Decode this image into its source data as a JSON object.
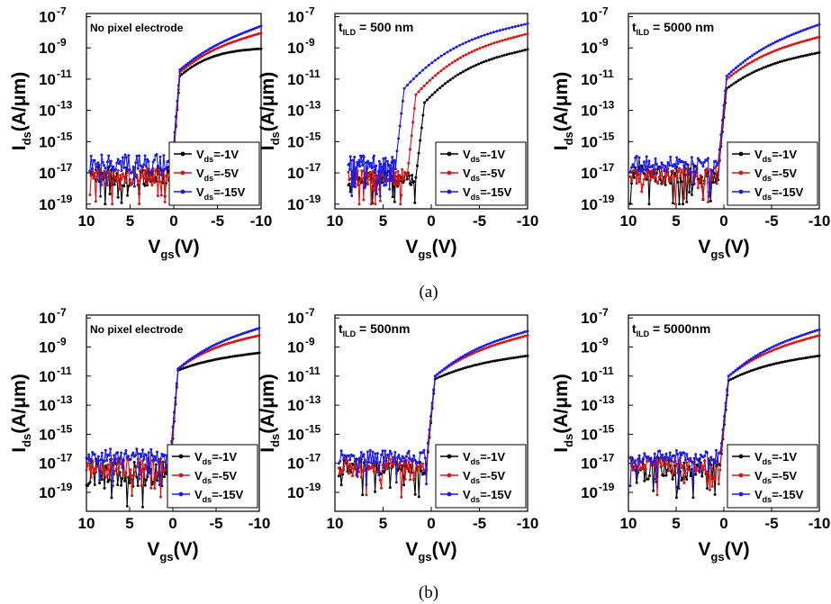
{
  "figure": {
    "caption_a": "(a)",
    "caption_b": "(b)"
  },
  "chart_data": [
    {
      "type": "line",
      "row": "a",
      "annotation": {
        "text": "No pixel electrode"
      },
      "xlabel": {
        "main": "V",
        "sub": "gs",
        "unit": "(V)"
      },
      "ylabel": {
        "main": "I",
        "sub": "ds",
        "unit": "(A/μm)"
      },
      "xlim": [
        10,
        -10
      ],
      "ylog": true,
      "ylim": [
        -19.3,
        -6.8
      ],
      "xticks": [
        10,
        5,
        0,
        -5,
        -10
      ],
      "yticks": [
        -19,
        -17,
        -15,
        -13,
        -11,
        -9,
        -7
      ],
      "ytick_base": "10",
      "legend_position": "lower-right",
      "series": [
        {
          "name": "V_ds=-1V",
          "label_main": "V",
          "label_sub": "ds",
          "label_rest": "=-1V",
          "color": "#000000",
          "noise": [
            -16.6,
            -17.9
          ],
          "on": [
            -9.05,
            -8.9,
            -10.8
          ],
          "vt": 0.2,
          "off_start": 9.6,
          "seed": 3
        },
        {
          "name": "V_ds=-5V",
          "label_main": "V",
          "label_sub": "ds",
          "label_rest": "=-5V",
          "color": "#dd1111",
          "noise": [
            -16.7,
            -17.8
          ],
          "on": [
            -8.05,
            -8.95,
            -10.55
          ],
          "vt": 0.2,
          "off_start": 9.6,
          "seed": 7
        },
        {
          "name": "V_ds=-15V",
          "label_main": "V",
          "label_sub": "ds",
          "label_rest": "=-15V",
          "color": "#1a1aee",
          "noise": [
            -15.8,
            -17.0
          ],
          "on": [
            -7.6,
            -8.9,
            -10.4
          ],
          "vt": 0.2,
          "off_start": 9.6,
          "seed": 11
        }
      ]
    },
    {
      "type": "line",
      "row": "a",
      "annotation": {
        "text": "= 500 nm",
        "t_main": "t",
        "t_sub": "ILD"
      },
      "xlabel": {
        "main": "V",
        "sub": "gs",
        "unit": "(V)"
      },
      "ylabel": {
        "main": "I",
        "sub": "ds",
        "unit": "(A/μm)"
      },
      "xlim": [
        10,
        -10
      ],
      "ylog": true,
      "ylim": [
        -19.3,
        -6.8
      ],
      "xticks": [
        10,
        5,
        0,
        -5,
        -10
      ],
      "yticks": [
        -19,
        -17,
        -15,
        -13,
        -11,
        -9,
        -7
      ],
      "ytick_base": "10",
      "legend_position": "lower-right",
      "series": [
        {
          "name": "V_ds=-1V",
          "label_main": "V",
          "label_sub": "ds",
          "label_rest": "=-1V",
          "color": "#000000",
          "noise": [
            -16.8,
            -17.9
          ],
          "on": [
            -9.1,
            -9.7,
            -12.5
          ],
          "vt": 1.6,
          "off_start": 8.6,
          "seed": 5
        },
        {
          "name": "V_ds=-5V",
          "label_main": "V",
          "label_sub": "ds",
          "label_rest": "=-5V",
          "color": "#dd1111",
          "noise": [
            -16.7,
            -17.8
          ],
          "on": [
            -8.1,
            -8.8,
            -12.0
          ],
          "vt": 2.5,
          "off_start": 8.6,
          "seed": 9
        },
        {
          "name": "V_ds=-15V",
          "label_main": "V",
          "label_sub": "ds",
          "label_rest": "=-15V",
          "color": "#1a1aee",
          "noise": [
            -15.9,
            -16.9
          ],
          "on": [
            -7.45,
            -8.1,
            -11.6
          ],
          "vt": 3.7,
          "off_start": 8.6,
          "seed": 13
        }
      ]
    },
    {
      "type": "line",
      "row": "a",
      "annotation": {
        "text": "= 5000 nm",
        "t_main": "t",
        "t_sub": "ILD"
      },
      "xlabel": {
        "main": "V",
        "sub": "gs",
        "unit": "(V)"
      },
      "ylabel": {
        "main": "I",
        "sub": "ds",
        "unit": "(A/μm)"
      },
      "xlim": [
        10,
        -10
      ],
      "ylog": true,
      "ylim": [
        -19.3,
        -6.8
      ],
      "xticks": [
        10,
        5,
        0,
        -5,
        -10
      ],
      "yticks": [
        -19,
        -17,
        -15,
        -13,
        -11,
        -9,
        -7
      ],
      "ytick_base": "10",
      "legend_position": "lower-right",
      "series": [
        {
          "name": "V_ds=-1V",
          "label_main": "V",
          "label_sub": "ds",
          "label_rest": "=-1V",
          "color": "#000000",
          "noise": [
            -16.5,
            -17.8
          ],
          "on": [
            -9.3,
            -9.9,
            -11.6
          ],
          "vt": 0.6,
          "off_start": 9.8,
          "seed": 17
        },
        {
          "name": "V_ds=-5V",
          "label_main": "V",
          "label_sub": "ds",
          "label_rest": "=-5V",
          "color": "#dd1111",
          "noise": [
            -16.6,
            -17.7
          ],
          "on": [
            -8.3,
            -9.2,
            -11.0
          ],
          "vt": 0.6,
          "off_start": 9.8,
          "seed": 19
        },
        {
          "name": "V_ds=-15V",
          "label_main": "V",
          "label_sub": "ds",
          "label_rest": "=-15V",
          "color": "#1a1aee",
          "noise": [
            -15.9,
            -17.0
          ],
          "on": [
            -7.5,
            -8.8,
            -10.8
          ],
          "vt": 0.6,
          "off_start": 9.8,
          "seed": 23
        }
      ]
    },
    {
      "type": "line",
      "row": "b",
      "annotation": {
        "text": "No pixel electrode"
      },
      "xlabel": {
        "main": "V",
        "sub": "gs",
        "unit": "(V)"
      },
      "ylabel": {
        "main": "I",
        "sub": "ds",
        "unit": "(A/μm)"
      },
      "xlim": [
        10,
        -10
      ],
      "ylog": true,
      "ylim": [
        -20.3,
        -6.8
      ],
      "xticks": [
        10,
        5,
        0,
        -5,
        -10
      ],
      "yticks": [
        -19,
        -17,
        -15,
        -13,
        -11,
        -9,
        -7
      ],
      "ytick_base": "10",
      "legend_position": "lower-right",
      "series": [
        {
          "name": "V_ds=-1V",
          "label_main": "V",
          "label_sub": "ds",
          "label_rest": "=-1V",
          "color": "#000000",
          "noise": [
            -16.7,
            -18.6
          ],
          "on": [
            -9.4,
            -9.8,
            -10.6
          ],
          "vt": 0.3,
          "off_start": 10.0,
          "seed": 29
        },
        {
          "name": "V_ds=-5V",
          "label_main": "V",
          "label_sub": "ds",
          "label_rest": "=-5V",
          "color": "#dd1111",
          "noise": [
            -16.6,
            -18.0
          ],
          "on": [
            -8.2,
            -8.9,
            -10.5
          ],
          "vt": 0.3,
          "off_start": 10.0,
          "seed": 31
        },
        {
          "name": "V_ds=-15V",
          "label_main": "V",
          "label_sub": "ds",
          "label_rest": "=-15V",
          "color": "#1a1aee",
          "noise": [
            -16.0,
            -17.0
          ],
          "on": [
            -7.7,
            -8.8,
            -10.5
          ],
          "vt": 0.3,
          "off_start": 10.0,
          "seed": 37
        }
      ]
    },
    {
      "type": "line",
      "row": "b",
      "annotation": {
        "text": "= 500nm",
        "t_main": "t",
        "t_sub": "ILD"
      },
      "xlabel": {
        "main": "V",
        "sub": "gs",
        "unit": "(V)"
      },
      "ylabel": {
        "main": "I",
        "sub": "ds",
        "unit": "(A/μm)"
      },
      "xlim": [
        10,
        -10
      ],
      "ylog": true,
      "ylim": [
        -20.3,
        -6.8
      ],
      "xticks": [
        10,
        5,
        0,
        -5,
        -10
      ],
      "yticks": [
        -19,
        -17,
        -15,
        -13,
        -11,
        -9,
        -7
      ],
      "ytick_base": "10",
      "legend_position": "lower-right",
      "series": [
        {
          "name": "V_ds=-1V",
          "label_main": "V",
          "label_sub": "ds",
          "label_rest": "=-1V",
          "color": "#000000",
          "noise": [
            -16.6,
            -17.9
          ],
          "on": [
            -9.6,
            -10.1,
            -11.2
          ],
          "vt": 0.5,
          "off_start": 9.6,
          "seed": 41
        },
        {
          "name": "V_ds=-5V",
          "label_main": "V",
          "label_sub": "ds",
          "label_rest": "=-5V",
          "color": "#dd1111",
          "noise": [
            -16.6,
            -17.7
          ],
          "on": [
            -8.2,
            -9.2,
            -11.0
          ],
          "vt": 0.5,
          "off_start": 9.6,
          "seed": 43
        },
        {
          "name": "V_ds=-15V",
          "label_main": "V",
          "label_sub": "ds",
          "label_rest": "=-15V",
          "color": "#1a1aee",
          "noise": [
            -16.1,
            -17.0
          ],
          "on": [
            -7.9,
            -9.0,
            -11.0
          ],
          "vt": 0.5,
          "off_start": 9.6,
          "seed": 47
        }
      ]
    },
    {
      "type": "line",
      "row": "b",
      "annotation": {
        "text": "= 5000nm",
        "t_main": "t",
        "t_sub": "ILD"
      },
      "xlabel": {
        "main": "V",
        "sub": "gs",
        "unit": "(V)"
      },
      "ylabel": {
        "main": "I",
        "sub": "ds",
        "unit": "(A/μm)"
      },
      "xlim": [
        10,
        -10
      ],
      "ylog": true,
      "ylim": [
        -20.3,
        -6.8
      ],
      "xticks": [
        10,
        5,
        0,
        -5,
        -10
      ],
      "yticks": [
        -19,
        -17,
        -15,
        -13,
        -11,
        -9,
        -7
      ],
      "ytick_base": "10",
      "legend_position": "lower-right",
      "series": [
        {
          "name": "V_ds=-1V",
          "label_main": "V",
          "label_sub": "ds",
          "label_rest": "=-1V",
          "color": "#000000",
          "noise": [
            -16.6,
            -18.1
          ],
          "on": [
            -9.6,
            -10.1,
            -11.3
          ],
          "vt": 0.4,
          "off_start": 9.8,
          "seed": 53
        },
        {
          "name": "V_ds=-5V",
          "label_main": "V",
          "label_sub": "ds",
          "label_rest": "=-5V",
          "color": "#dd1111",
          "noise": [
            -16.6,
            -17.7
          ],
          "on": [
            -8.2,
            -9.2,
            -11.0
          ],
          "vt": 0.4,
          "off_start": 9.8,
          "seed": 59
        },
        {
          "name": "V_ds=-15V",
          "label_main": "V",
          "label_sub": "ds",
          "label_rest": "=-15V",
          "color": "#1a1aee",
          "noise": [
            -16.1,
            -17.0
          ],
          "on": [
            -7.8,
            -9.0,
            -11.0
          ],
          "vt": 0.4,
          "off_start": 9.8,
          "seed": 61
        }
      ]
    }
  ]
}
